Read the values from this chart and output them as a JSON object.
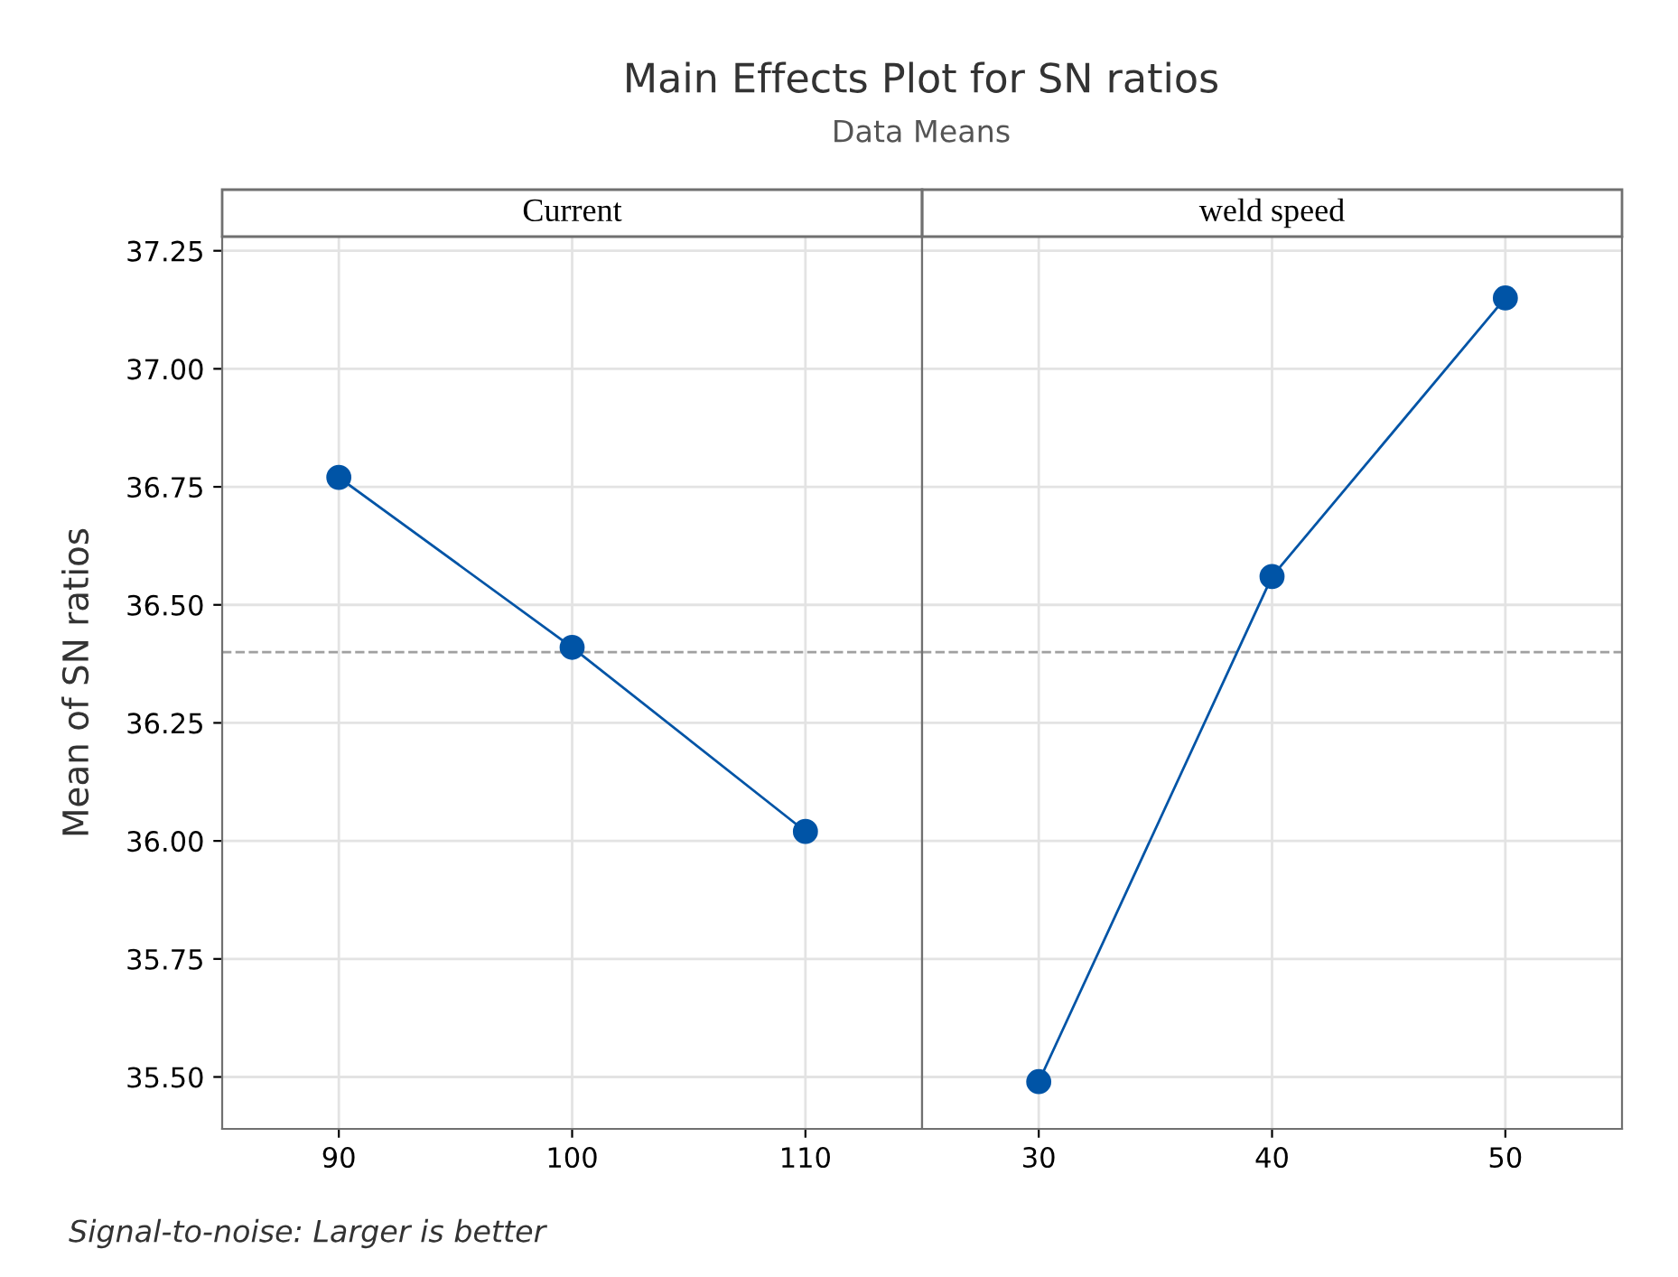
{
  "chart_data": [
    {
      "type": "line",
      "title": "Current",
      "ylabel": "Mean of SN ratios",
      "annotations": [
        "Main Effects Plot for SN ratios",
        "Data Means",
        "Signal-to-noise: Larger is better"
      ],
      "categories": [
        "90",
        "100",
        "110"
      ],
      "series": [
        {
          "color": "#0054a6",
          "values": [
            36.77,
            36.41,
            36.02
          ]
        }
      ],
      "ylim": [
        35.39,
        37.28
      ],
      "yticks": [
        {
          "value": 35.5,
          "label": "35.50"
        },
        {
          "value": 35.75,
          "label": "35.75"
        },
        {
          "value": 36.0,
          "label": "36.00"
        },
        {
          "value": 36.25,
          "label": "36.25"
        },
        {
          "value": 36.5,
          "label": "36.50"
        },
        {
          "value": 36.75,
          "label": "36.75"
        },
        {
          "value": 37.0,
          "label": "37.00"
        },
        {
          "value": 37.25,
          "label": "37.25"
        }
      ],
      "ref_lines": [
        {
          "axis": "y",
          "value": 36.4,
          "color": "#a0a0a0",
          "line_style": "dashed"
        }
      ],
      "grid": true,
      "marker": "circle",
      "line_style": "solid",
      "legend": false
    },
    {
      "type": "line",
      "title": "weld speed",
      "categories": [
        "30",
        "40",
        "50"
      ],
      "series": [
        {
          "color": "#0054a6",
          "values": [
            35.49,
            36.56,
            37.15
          ]
        }
      ],
      "ylim": [
        35.39,
        37.28
      ],
      "yticks": [
        35.5,
        35.75,
        36.0,
        36.25,
        36.5,
        36.75,
        37.0,
        37.25
      ],
      "ref_lines": [
        {
          "axis": "y",
          "value": 36.4,
          "color": "#a0a0a0",
          "line_style": "dashed"
        }
      ],
      "grid": true,
      "marker": "circle",
      "line_style": "solid",
      "legend": false,
      "tick_labels": "x"
    }
  ]
}
